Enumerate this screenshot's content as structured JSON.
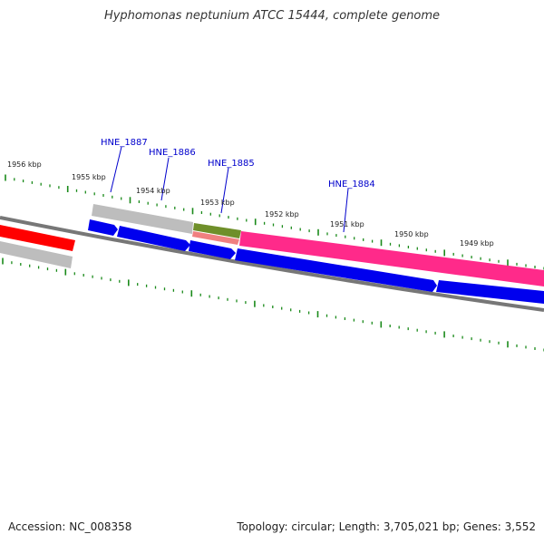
{
  "title": "Hyphomonas neptunium ATCC 15444, complete genome",
  "accession": "Accession: NC_008358",
  "summary": "Topology: circular; Length: 3,705,021 bp; Genes: 3,552",
  "colors": {
    "tick": "#1a8a1a",
    "backbone": "#777777",
    "forward_gene": "#0000ee",
    "highlight_pink": "#ff2a8a",
    "red": "#ff0000",
    "gray_feature": "#b8b8b8",
    "olive_feature": "#6f8f2a",
    "gene_label": "#0000cc"
  },
  "scale_labels": [
    "1956 kbp",
    "1955 kbp",
    "1954 kbp",
    "1953 kbp",
    "1952 kbp",
    "1951 kbp",
    "1950 kbp",
    "1949 kbp"
  ],
  "gene_labels": [
    "HNE_1887",
    "HNE_1886",
    "HNE_1885",
    "HNE_1884"
  ]
}
